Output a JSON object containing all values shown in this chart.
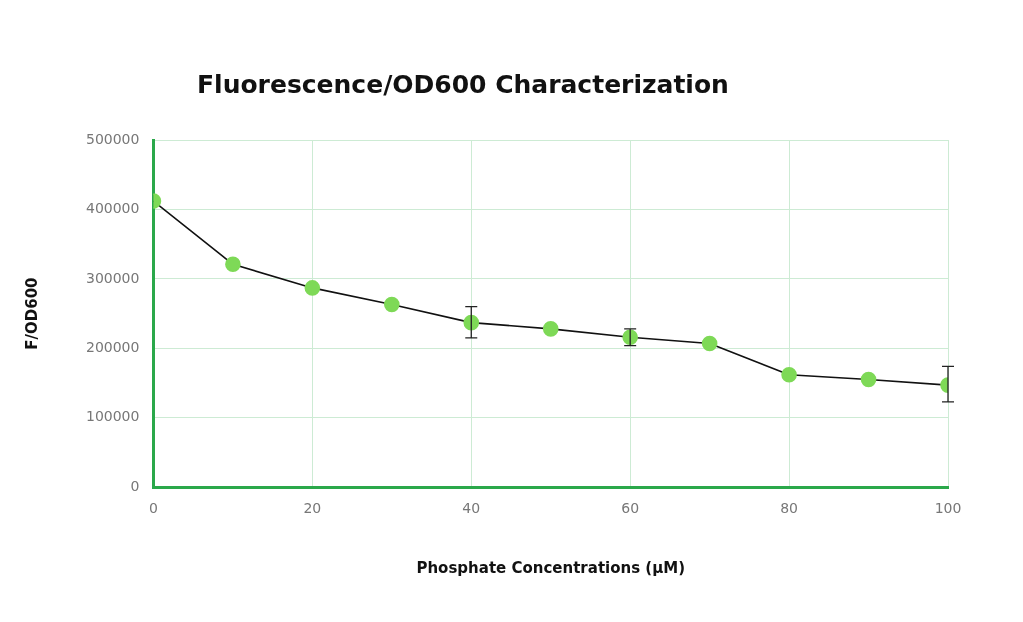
{
  "chart_data": {
    "type": "line",
    "title": "Fluorescence/OD600 Characterization",
    "xlabel": "Phosphate Concentrations (µM)",
    "ylabel": "F/OD600",
    "x": [
      0,
      10,
      20,
      30,
      40,
      50,
      60,
      70,
      80,
      90,
      100
    ],
    "series": [
      {
        "color": "#7ed957",
        "values": [
          412000,
          321000,
          287000,
          263000,
          237000,
          228000,
          216000,
          207000,
          162000,
          155000,
          147000
        ],
        "errors": [
          null,
          null,
          null,
          null,
          [
            215000,
            260000
          ],
          null,
          [
            204000,
            228000
          ],
          null,
          null,
          null,
          [
            123000,
            174000
          ]
        ]
      }
    ],
    "xlim": [
      0,
      100
    ],
    "xticks": [
      0,
      20,
      40,
      60,
      80,
      100
    ],
    "ylim": [
      0,
      500000
    ],
    "yticks": [
      0,
      100000,
      200000,
      300000,
      400000,
      500000
    ],
    "grid": true,
    "legend": false,
    "marker": "circle",
    "line_style": "solid"
  }
}
